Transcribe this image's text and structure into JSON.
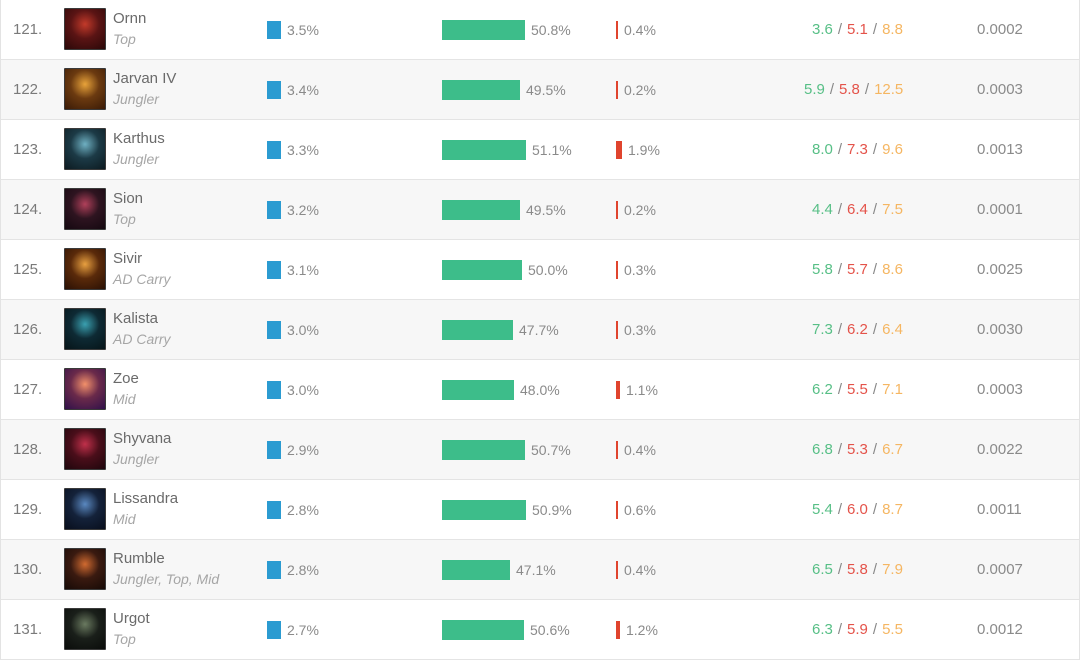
{
  "colors": {
    "play_rate_bar": "#2b9bd1",
    "win_rate_bar": "#3dbd8a",
    "ban_rate_bar": "#e0442e",
    "kills": "#57bf86",
    "deaths": "#e4534a",
    "assists": "#f5b662"
  },
  "rows": [
    {
      "rank": "121.",
      "name": "Ornn",
      "role": "Top",
      "play_rate": "3.5%",
      "win_rate": "50.8%",
      "win_fraction": 0.508,
      "ban_rate": "0.4%",
      "ban_fraction": 0.004,
      "kills": "3.6",
      "deaths": "5.1",
      "assists": "8.8",
      "score": "0.0002",
      "portrait_colors": [
        "#5a1414",
        "#c23a2a",
        "#2a0808"
      ]
    },
    {
      "rank": "122.",
      "name": "Jarvan IV",
      "role": "Jungler",
      "play_rate": "3.4%",
      "win_rate": "49.5%",
      "win_fraction": 0.495,
      "ban_rate": "0.2%",
      "ban_fraction": 0.002,
      "kills": "5.9",
      "deaths": "5.8",
      "assists": "12.5",
      "score": "0.0003",
      "portrait_colors": [
        "#6b3a10",
        "#e8a33a",
        "#3a1a06"
      ]
    },
    {
      "rank": "123.",
      "name": "Karthus",
      "role": "Jungler",
      "play_rate": "3.3%",
      "win_rate": "51.1%",
      "win_fraction": 0.511,
      "ban_rate": "1.9%",
      "ban_fraction": 0.019,
      "kills": "8.0",
      "deaths": "7.3",
      "assists": "9.6",
      "score": "0.0013",
      "portrait_colors": [
        "#1c3a46",
        "#6fb0c2",
        "#0c1a20"
      ]
    },
    {
      "rank": "124.",
      "name": "Sion",
      "role": "Top",
      "play_rate": "3.2%",
      "win_rate": "49.5%",
      "win_fraction": 0.495,
      "ban_rate": "0.2%",
      "ban_fraction": 0.002,
      "kills": "4.4",
      "deaths": "6.4",
      "assists": "7.5",
      "score": "0.0001",
      "portrait_colors": [
        "#2e1420",
        "#b0405a",
        "#140810"
      ]
    },
    {
      "rank": "125.",
      "name": "Sivir",
      "role": "AD Carry",
      "play_rate": "3.1%",
      "win_rate": "50.0%",
      "win_fraction": 0.5,
      "ban_rate": "0.3%",
      "ban_fraction": 0.003,
      "kills": "5.8",
      "deaths": "5.7",
      "assists": "8.6",
      "score": "0.0025",
      "portrait_colors": [
        "#5a2a0a",
        "#e8a040",
        "#2a1004"
      ]
    },
    {
      "rank": "126.",
      "name": "Kalista",
      "role": "AD Carry",
      "play_rate": "3.0%",
      "win_rate": "47.7%",
      "win_fraction": 0.477,
      "ban_rate": "0.3%",
      "ban_fraction": 0.003,
      "kills": "7.3",
      "deaths": "6.2",
      "assists": "6.4",
      "score": "0.0030",
      "portrait_colors": [
        "#0e2a34",
        "#3aa0b0",
        "#061418"
      ]
    },
    {
      "rank": "127.",
      "name": "Zoe",
      "role": "Mid",
      "play_rate": "3.0%",
      "win_rate": "48.0%",
      "win_fraction": 0.48,
      "ban_rate": "1.1%",
      "ban_fraction": 0.011,
      "kills": "6.2",
      "deaths": "5.5",
      "assists": "7.1",
      "score": "0.0003",
      "portrait_colors": [
        "#6a2a4a",
        "#f2906a",
        "#30104a"
      ]
    },
    {
      "rank": "128.",
      "name": "Shyvana",
      "role": "Jungler",
      "play_rate": "2.9%",
      "win_rate": "50.7%",
      "win_fraction": 0.507,
      "ban_rate": "0.4%",
      "ban_fraction": 0.004,
      "kills": "6.8",
      "deaths": "5.3",
      "assists": "6.7",
      "score": "0.0022",
      "portrait_colors": [
        "#4a0e1a",
        "#c0304a",
        "#1e060c"
      ]
    },
    {
      "rank": "129.",
      "name": "Lissandra",
      "role": "Mid",
      "play_rate": "2.8%",
      "win_rate": "50.9%",
      "win_fraction": 0.509,
      "ban_rate": "0.6%",
      "ban_fraction": 0.006,
      "kills": "5.4",
      "deaths": "6.0",
      "assists": "8.7",
      "score": "0.0011",
      "portrait_colors": [
        "#14223a",
        "#5a88c0",
        "#080e1c"
      ]
    },
    {
      "rank": "130.",
      "name": "Rumble",
      "role": "Jungler, Top, Mid",
      "play_rate": "2.8%",
      "win_rate": "47.1%",
      "win_fraction": 0.471,
      "ban_rate": "0.4%",
      "ban_fraction": 0.004,
      "kills": "6.5",
      "deaths": "5.8",
      "assists": "7.9",
      "score": "0.0007",
      "portrait_colors": [
        "#3a1a10",
        "#d06a30",
        "#160a06"
      ]
    },
    {
      "rank": "131.",
      "name": "Urgot",
      "role": "Top",
      "play_rate": "2.7%",
      "win_rate": "50.6%",
      "win_fraction": 0.506,
      "ban_rate": "1.2%",
      "ban_fraction": 0.012,
      "kills": "6.3",
      "deaths": "5.9",
      "assists": "5.5",
      "score": "0.0012",
      "portrait_colors": [
        "#1a1f1a",
        "#6a7a60",
        "#0a0c0a"
      ]
    }
  ]
}
